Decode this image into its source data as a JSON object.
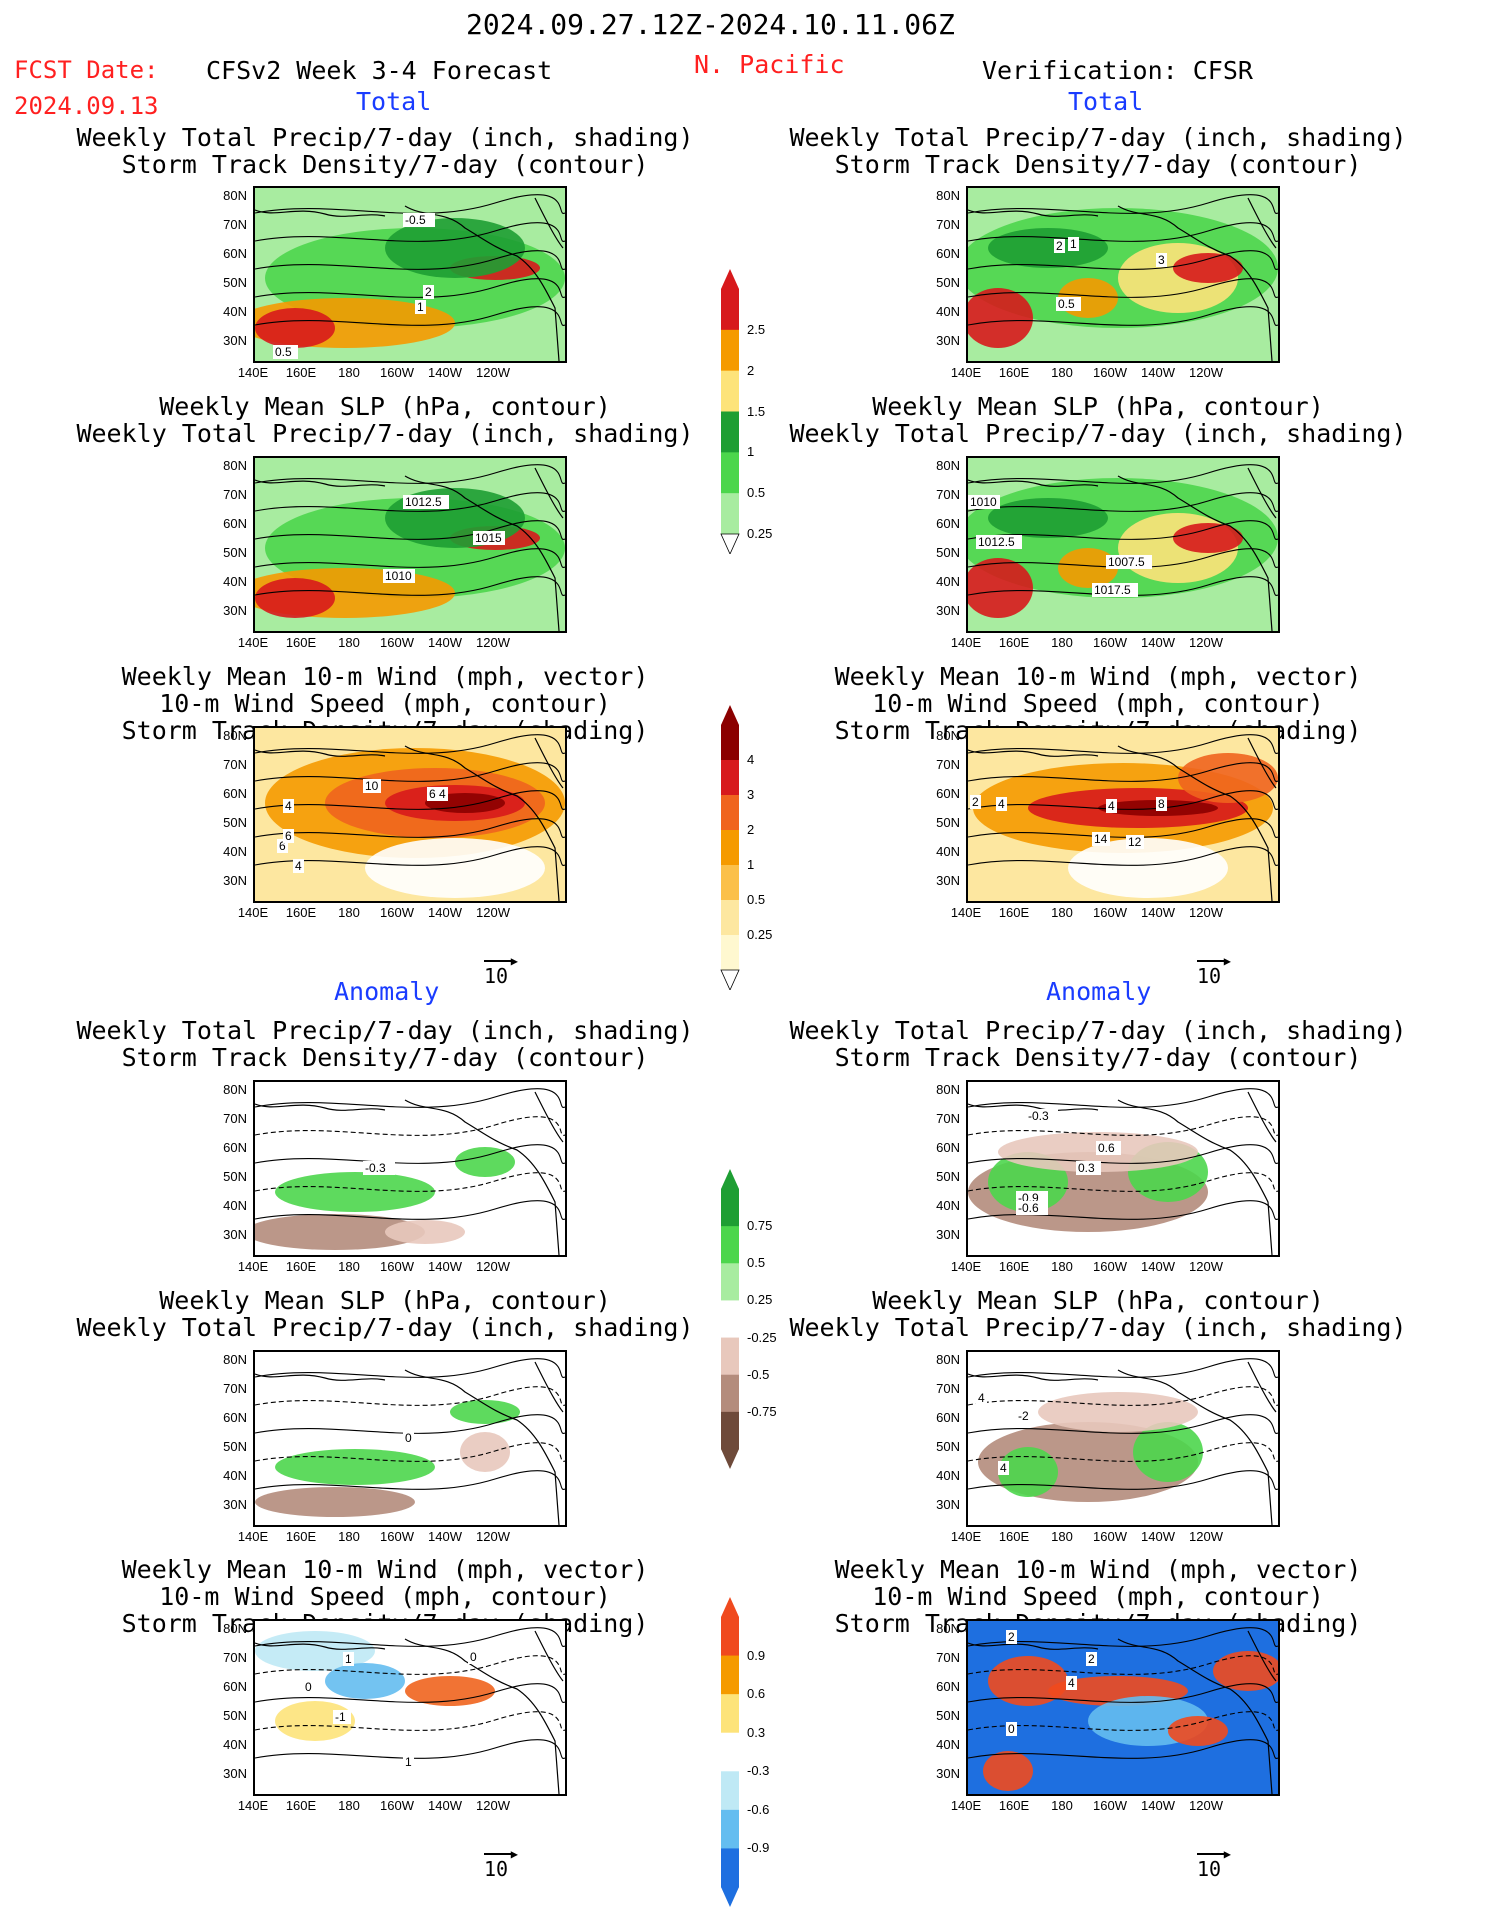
{
  "header": {
    "date_range": "2024.09.27.12Z-2024.10.11.06Z",
    "fcst_label": "FCST Date:",
    "fcst_date": "2024.09.13",
    "forecast_title": "CFSv2 Week 3-4 Forecast",
    "region": "N. Pacific",
    "verification": "Verification: CFSR"
  },
  "sections": {
    "total": "Total",
    "anomaly": "Anomaly"
  },
  "titles": {
    "precip_storm": [
      "Weekly Total Precip/7-day (inch, shading)",
      "Storm Track Density/7-day (contour)"
    ],
    "slp_precip": [
      "Weekly Mean SLP (hPa, contour)",
      "Weekly Total Precip/7-day (inch, shading)"
    ],
    "wind_storm": [
      "Weekly Mean 10-m Wind (mph, vector)",
      "10-m Wind Speed (mph, contour)",
      "Storm Track Density/7-day (shading)"
    ]
  },
  "axes": {
    "lat": [
      "80N",
      "70N",
      "60N",
      "50N",
      "40N",
      "30N"
    ],
    "lon": [
      "140E",
      "160E",
      "180",
      "160W",
      "140W",
      "120W"
    ]
  },
  "vector_ref": "10",
  "colorbars": {
    "precip_total": {
      "labels": [
        "2.5",
        "2",
        "1.5",
        "1",
        "0.5",
        "0.25"
      ],
      "colors": [
        "#d7191c",
        "#f59a00",
        "#fde37a",
        "#1e9e33",
        "#4cd64c",
        "#a8eca0"
      ]
    },
    "storm_total": {
      "labels": [
        "4",
        "3",
        "2",
        "1",
        "0.5",
        "0.25"
      ],
      "colors": [
        "#8b0000",
        "#d7191c",
        "#f0641e",
        "#f59a00",
        "#fbc04a",
        "#fde7a0",
        "#fff8d0"
      ]
    },
    "precip_anom": {
      "labels": [
        "0.75",
        "0.5",
        "0.25",
        "-0.25",
        "-0.5",
        "-0.75"
      ],
      "colors": [
        "#1e9e33",
        "#4cd64c",
        "#a8eca0",
        "#ffffff",
        "#e8c8bc",
        "#b48c7c",
        "#6e4a3a"
      ]
    },
    "storm_anom": {
      "labels": [
        "0.9",
        "0.6",
        "0.3",
        "-0.3",
        "-0.6",
        "-0.9"
      ],
      "colors": [
        "#f04a1e",
        "#f59a00",
        "#fde37a",
        "#ffffff",
        "#bfe9f5",
        "#64bdf0",
        "#1e6fe0"
      ]
    }
  },
  "contour_labels": {
    "l1": [
      "-0.5",
      "2",
      "1",
      "0.5"
    ],
    "r1": [
      "2",
      "1",
      "3",
      "0.5"
    ],
    "l2": [
      "1012.5",
      "1015",
      "1010"
    ],
    "r2": [
      "1010",
      "1012.5",
      "1007.5",
      "1017.5"
    ],
    "l3": [
      "10",
      "6",
      "4",
      "4",
      "6",
      "4",
      "6"
    ],
    "r3": [
      "2",
      "4",
      "4",
      "8",
      "14",
      "12"
    ],
    "l4": [
      "-0.3"
    ],
    "r4": [
      "-0.3",
      "0.6",
      "0.3",
      "-0.9",
      "-0.6"
    ],
    "l5": [
      "0"
    ],
    "r5": [
      "4",
      "-2",
      "4"
    ],
    "l6": [
      "1",
      "0",
      "0",
      "-1",
      "1"
    ],
    "r6": [
      "2",
      "2",
      "4",
      "0"
    ]
  }
}
